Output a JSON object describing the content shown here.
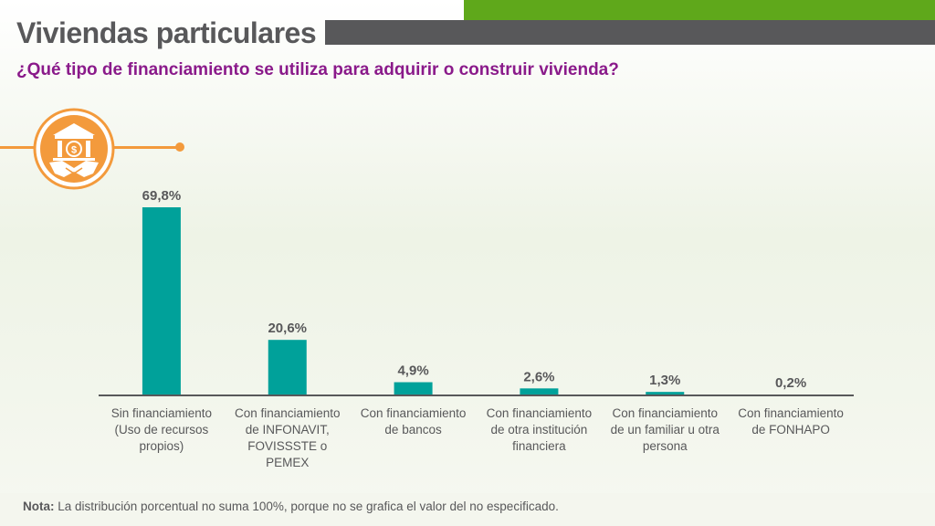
{
  "header": {
    "title": "Viviendas particulares",
    "subtitle": "¿Qué tipo de financiamiento se utiliza para adquirir o construir vivienda?"
  },
  "colors": {
    "accent_green": "#5fa81b",
    "title_gray": "#58585a",
    "subtitle_purple": "#8a1a8a",
    "accent_orange": "#f39a3c",
    "bar_teal": "#00a19a"
  },
  "icon": {
    "name": "bank-handshake-icon",
    "symbol": "$"
  },
  "chart_data": {
    "type": "bar",
    "categories": [
      [
        "Sin financiamiento",
        "(Uso de recursos",
        "propios)"
      ],
      [
        "Con financiamiento",
        "de INFONAVIT,",
        "FOVISSSTE o",
        "PEMEX"
      ],
      [
        "Con financiamiento",
        "de bancos"
      ],
      [
        "Con financiamiento",
        "de otra institución",
        "financiera"
      ],
      [
        "Con financiamiento",
        "de un familiar u otra",
        "persona"
      ],
      [
        "Con financiamiento",
        "de FONHAPO"
      ]
    ],
    "values": [
      69.8,
      20.6,
      4.9,
      2.6,
      1.3,
      0.2
    ],
    "value_labels": [
      "69,8%",
      "20,6%",
      "4,9%",
      "2,6%",
      "1,3%",
      "0,2%"
    ],
    "unit": "%",
    "ylim": [
      0,
      69.8
    ],
    "grid": false,
    "legend": "none"
  },
  "note": {
    "label": "Nota:",
    "text": " La distribución porcentual no suma 100%, porque no se grafica el valor del no especificado."
  }
}
